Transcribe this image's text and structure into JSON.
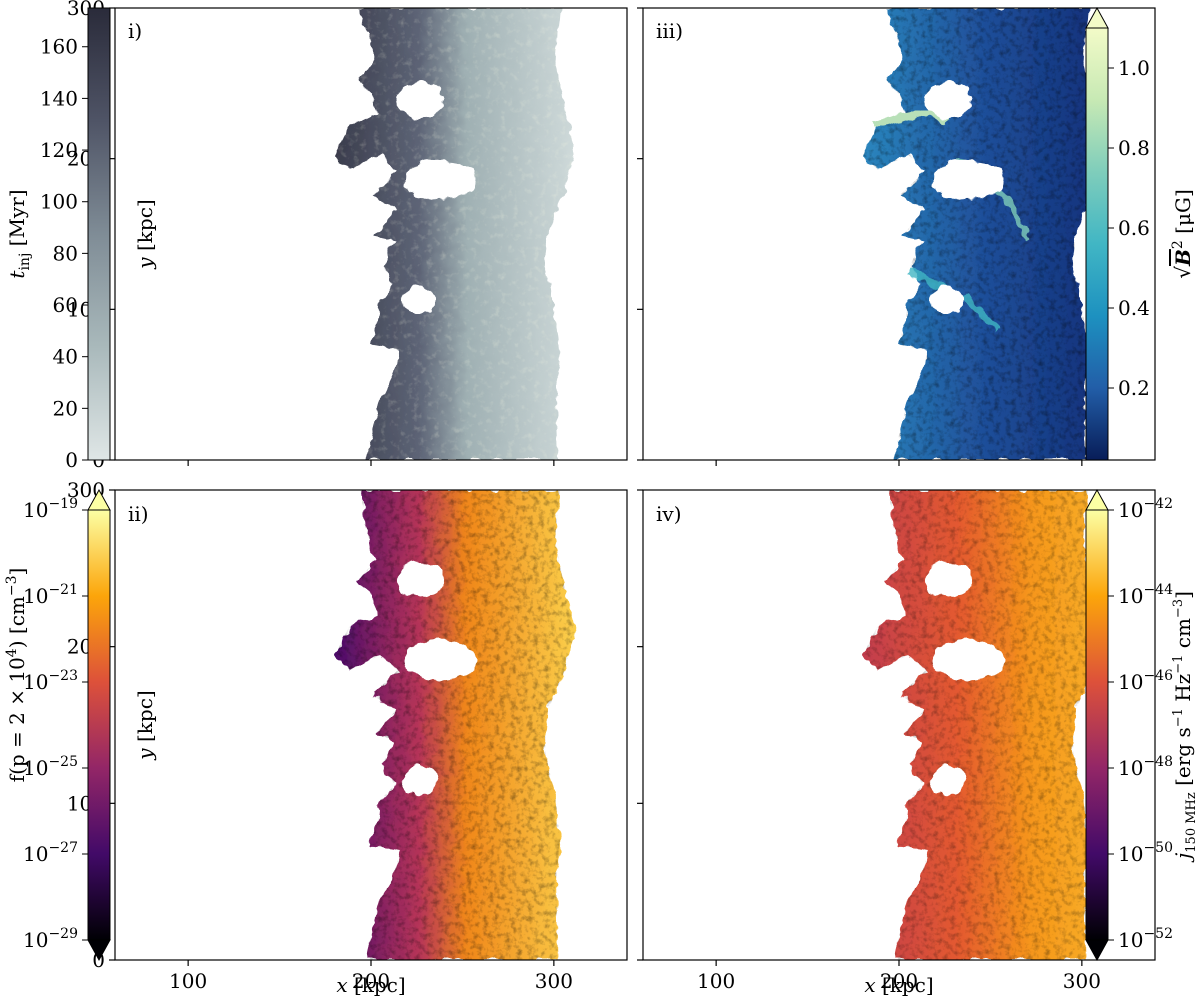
{
  "figure": {
    "panels": [
      {
        "id": "i",
        "label": "i)",
        "colormap": "bone"
      },
      {
        "id": "ii",
        "label": "ii)",
        "colormap": "inferno"
      },
      {
        "id": "iii",
        "label": "iii)",
        "colormap": "YlGnBu"
      },
      {
        "id": "iv",
        "label": "iv)",
        "colormap": "inferno"
      }
    ],
    "axes": {
      "xlabel_var": "x",
      "xlabel_unit": " [kpc]",
      "ylabel_var": "y",
      "ylabel_unit": " [kpc]",
      "xlim": [
        60,
        340
      ],
      "ylim": [
        0,
        300
      ],
      "xticks": [
        100,
        200,
        300
      ],
      "yticks": [
        0,
        100,
        200,
        300
      ]
    },
    "colorbars": [
      {
        "id": "t_inj",
        "label_var": "t",
        "label_sub": "inj",
        "label_unit": " [Myr]",
        "scale": "linear",
        "range": [
          0,
          175
        ],
        "ticks": [
          "0",
          "20",
          "40",
          "60",
          "80",
          "100",
          "120",
          "140",
          "160"
        ],
        "tick_values": [
          0,
          20,
          40,
          60,
          80,
          100,
          120,
          140,
          160
        ],
        "colors": [
          "#dfe6e6",
          "#a9b9bb",
          "#7f8c96",
          "#4f5466",
          "#2a2b3a"
        ],
        "extend": "none"
      },
      {
        "id": "f_p",
        "label_pre": "f(p = 2 × 10",
        "label_pre_sup": "4",
        "label_post": ") [cm",
        "label_post_sup": "−3",
        "label_end": "]",
        "scale": "log",
        "range": [
          -29,
          -19
        ],
        "tick_base": "10",
        "ticks": [
          "−29",
          "−27",
          "−25",
          "−23",
          "−21",
          "−19"
        ],
        "tick_values": [
          -29,
          -27,
          -25,
          -23,
          -21,
          -19
        ],
        "colors": [
          "#000004",
          "#420a68",
          "#932667",
          "#dd513a",
          "#fca50a",
          "#fcffa4"
        ],
        "extend": "both"
      },
      {
        "id": "B",
        "label_pre": "√",
        "label_var": "B",
        "label_sup": "2",
        "label_unit": " [μG]",
        "scale": "linear",
        "range": [
          0.02,
          1.1
        ],
        "ticks": [
          "0.2",
          "0.4",
          "0.6",
          "0.8",
          "1.0"
        ],
        "tick_values": [
          0.2,
          0.4,
          0.6,
          0.8,
          1.0
        ],
        "colors": [
          "#081d58",
          "#225ea8",
          "#1d91c0",
          "#41b6c4",
          "#7fcdbb",
          "#c7e9b4",
          "#f3fbc8"
        ],
        "extend": "max"
      },
      {
        "id": "j_150",
        "label_var": "j",
        "label_sub": "150 MHz",
        "label_pre_unit": " [erg s",
        "label_sup1": "−1",
        "label_mid_unit": " Hz",
        "label_sup2": "−1",
        "label_unit2": " cm",
        "label_sup3": "−3",
        "label_end": "]",
        "scale": "log",
        "range": [
          -52,
          -42
        ],
        "tick_base": "10",
        "ticks": [
          "−52",
          "−50",
          "−48",
          "−46",
          "−44",
          "−42"
        ],
        "tick_values": [
          -52,
          -50,
          -48,
          -46,
          -44,
          -42
        ],
        "colors": [
          "#000004",
          "#420a68",
          "#932667",
          "#dd513a",
          "#fca50a",
          "#fcffa4"
        ],
        "extend": "both"
      }
    ],
    "icons": [
      "simulation-map-bone",
      "simulation-map-inferno",
      "simulation-map-ylgnbu"
    ]
  }
}
